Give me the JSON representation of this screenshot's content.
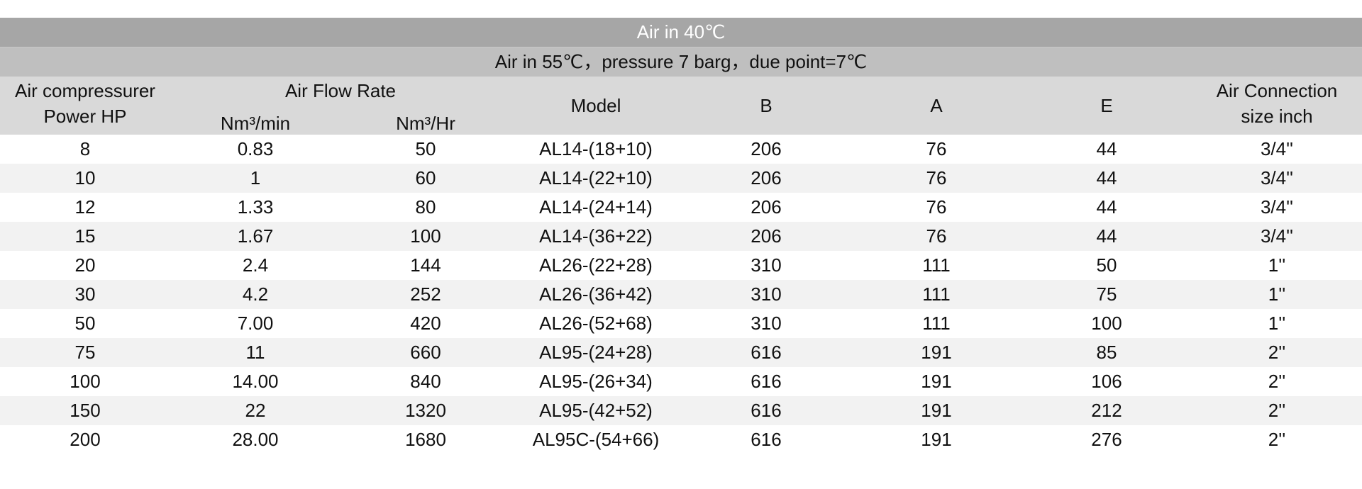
{
  "title": "Air in 40℃",
  "subtitle": "Air in 55℃，pressure 7 barg，due point=7℃",
  "headers": {
    "power_line1": "Air compressurer",
    "power_line2": "Power HP",
    "flow": "Air Flow Rate",
    "flow_min": "Nm³/min",
    "flow_hr": "Nm³/Hr",
    "model": "Model",
    "b": "B",
    "a": "A",
    "e": "E",
    "conn_line1": "Air Connection",
    "conn_line2": "size inch"
  },
  "rows": [
    [
      "8",
      "0.83",
      "50",
      "AL14-(18+10)",
      "206",
      "76",
      "44",
      "3/4''"
    ],
    [
      "10",
      "1",
      "60",
      "AL14-(22+10)",
      "206",
      "76",
      "44",
      "3/4''"
    ],
    [
      "12",
      "1.33",
      "80",
      "AL14-(24+14)",
      "206",
      "76",
      "44",
      "3/4''"
    ],
    [
      "15",
      "1.67",
      "100",
      "AL14-(36+22)",
      "206",
      "76",
      "44",
      "3/4''"
    ],
    [
      "20",
      "2.4",
      "144",
      "AL26-(22+28)",
      "310",
      "111",
      "50",
      "1''"
    ],
    [
      "30",
      "4.2",
      "252",
      "AL26-(36+42)",
      "310",
      "111",
      "75",
      "1''"
    ],
    [
      "50",
      "7.00",
      "420",
      "AL26-(52+68)",
      "310",
      "111",
      "100",
      "1''"
    ],
    [
      "75",
      "11",
      "660",
      "AL95-(24+28)",
      "616",
      "191",
      "85",
      "2''"
    ],
    [
      "100",
      "14.00",
      "840",
      "AL95-(26+34)",
      "616",
      "191",
      "106",
      "2''"
    ],
    [
      "150",
      "22",
      "1320",
      "AL95-(42+52)",
      "616",
      "191",
      "212",
      "2''"
    ],
    [
      "200",
      "28.00",
      "1680",
      "AL95C-(54+66)",
      "616",
      "191",
      "276",
      "2''"
    ]
  ]
}
